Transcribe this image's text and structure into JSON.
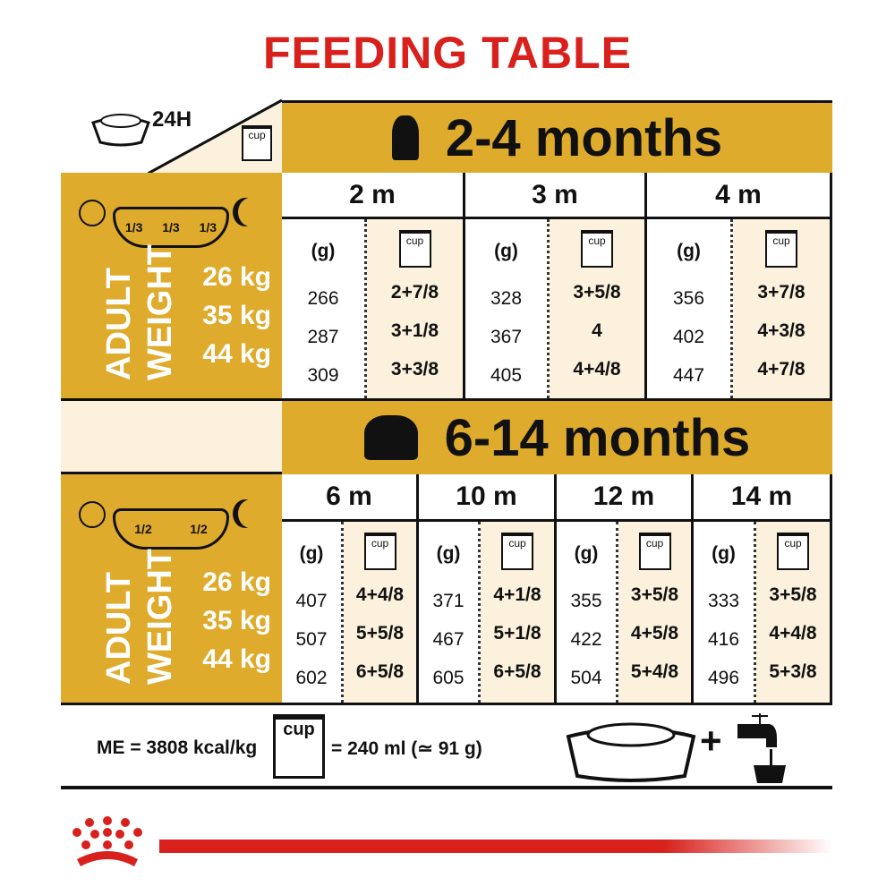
{
  "title": "FEEDING TABLE",
  "top_label": "24H",
  "cup_label": "cup",
  "colors": {
    "gold": "#dfab2c",
    "cream": "#fbf1dc",
    "red": "#d8211c"
  },
  "sections": [
    {
      "header": "2-4 months",
      "icon": "puppy-icon",
      "portion_labels": [
        "1/3",
        "1/3",
        "1/3"
      ],
      "weights": [
        "26 kg",
        "35 kg",
        "44 kg"
      ],
      "ages": [
        {
          "label": "2 m",
          "grams": [
            "266",
            "287",
            "309"
          ],
          "cups": [
            "2+7/8",
            "3+1/8",
            "3+3/8"
          ]
        },
        {
          "label": "3 m",
          "grams": [
            "328",
            "367",
            "405"
          ],
          "cups": [
            "3+5/8",
            "4",
            "4+4/8"
          ]
        },
        {
          "label": "4 m",
          "grams": [
            "356",
            "402",
            "447"
          ],
          "cups": [
            "3+7/8",
            "4+3/8",
            "4+7/8"
          ]
        }
      ]
    },
    {
      "header": "6-14 months",
      "icon": "young-dog-icon",
      "portion_labels": [
        "1/2",
        "1/2"
      ],
      "weights": [
        "26 kg",
        "35 kg",
        "44 kg"
      ],
      "ages": [
        {
          "label": "6 m",
          "grams": [
            "407",
            "507",
            "602"
          ],
          "cups": [
            "4+4/8",
            "5+5/8",
            "6+5/8"
          ]
        },
        {
          "label": "10 m",
          "grams": [
            "371",
            "467",
            "605"
          ],
          "cups": [
            "4+1/8",
            "5+1/8",
            "6+5/8"
          ]
        },
        {
          "label": "12 m",
          "grams": [
            "355",
            "422",
            "504"
          ],
          "cups": [
            "3+5/8",
            "4+5/8",
            "5+4/8"
          ]
        },
        {
          "label": "14 m",
          "grams": [
            "333",
            "416",
            "496"
          ],
          "cups": [
            "3+5/8",
            "4+4/8",
            "5+3/8"
          ]
        }
      ]
    }
  ],
  "adult_label": "ADULT",
  "weight_label": "WEIGHT",
  "grams_label": "(g)",
  "footer": {
    "energy": "ME = 3808 kcal/kg",
    "cup_equiv": "= 240 ml (≃ 91 g)",
    "plus": "+"
  }
}
